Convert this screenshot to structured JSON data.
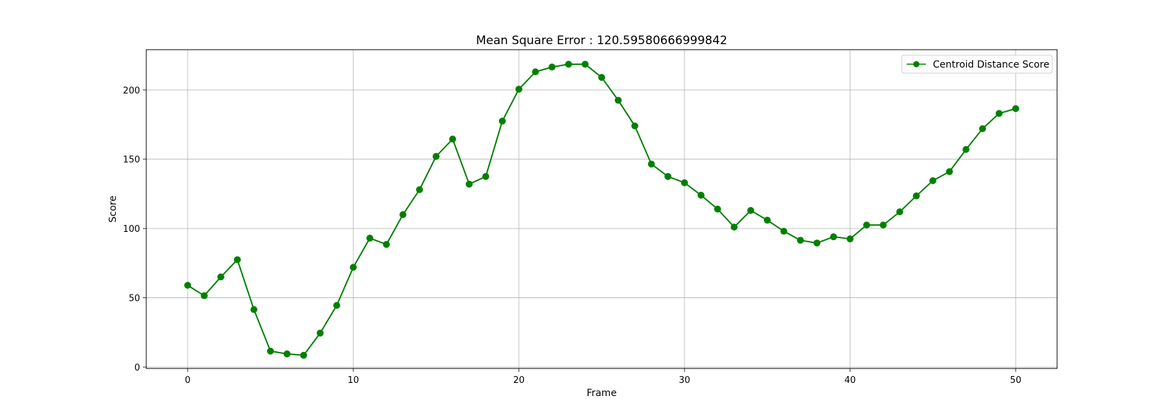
{
  "chart_data": {
    "type": "line",
    "title": "Mean Square Error : 120.59580666999842",
    "xlabel": "Frame",
    "ylabel": "Score",
    "xlim": [
      -2.5,
      52.5
    ],
    "ylim": [
      -1,
      229
    ],
    "xticks": [
      0,
      10,
      20,
      30,
      40,
      50
    ],
    "yticks": [
      0,
      50,
      100,
      150,
      200
    ],
    "grid": true,
    "legend_position": "top-right",
    "series": [
      {
        "name": "Centroid Distance Score",
        "color": "#008000",
        "marker": "circle",
        "x": [
          0,
          1,
          2,
          3,
          4,
          5,
          6,
          7,
          8,
          9,
          10,
          11,
          12,
          13,
          14,
          15,
          16,
          17,
          18,
          19,
          20,
          21,
          22,
          23,
          24,
          25,
          26,
          27,
          28,
          29,
          30,
          31,
          32,
          33,
          34,
          35,
          36,
          37,
          38,
          39,
          40,
          41,
          42,
          43,
          44,
          45,
          46,
          47,
          48,
          49,
          50
        ],
        "values": [
          59,
          51.5,
          65,
          77.5,
          41.5,
          11.5,
          9.5,
          8.5,
          24.5,
          44.5,
          72,
          93,
          88.5,
          110,
          128,
          152,
          164.5,
          132,
          137.5,
          177.5,
          200.5,
          213,
          216.5,
          218.5,
          218.5,
          209,
          192.5,
          174,
          146.5,
          137.5,
          133,
          124,
          114,
          101,
          113,
          106,
          98,
          91.5,
          89.5,
          94,
          92.5,
          102.5,
          102.5,
          112,
          123.5,
          134.5,
          141,
          157,
          172,
          183,
          186.5
        ]
      }
    ]
  }
}
